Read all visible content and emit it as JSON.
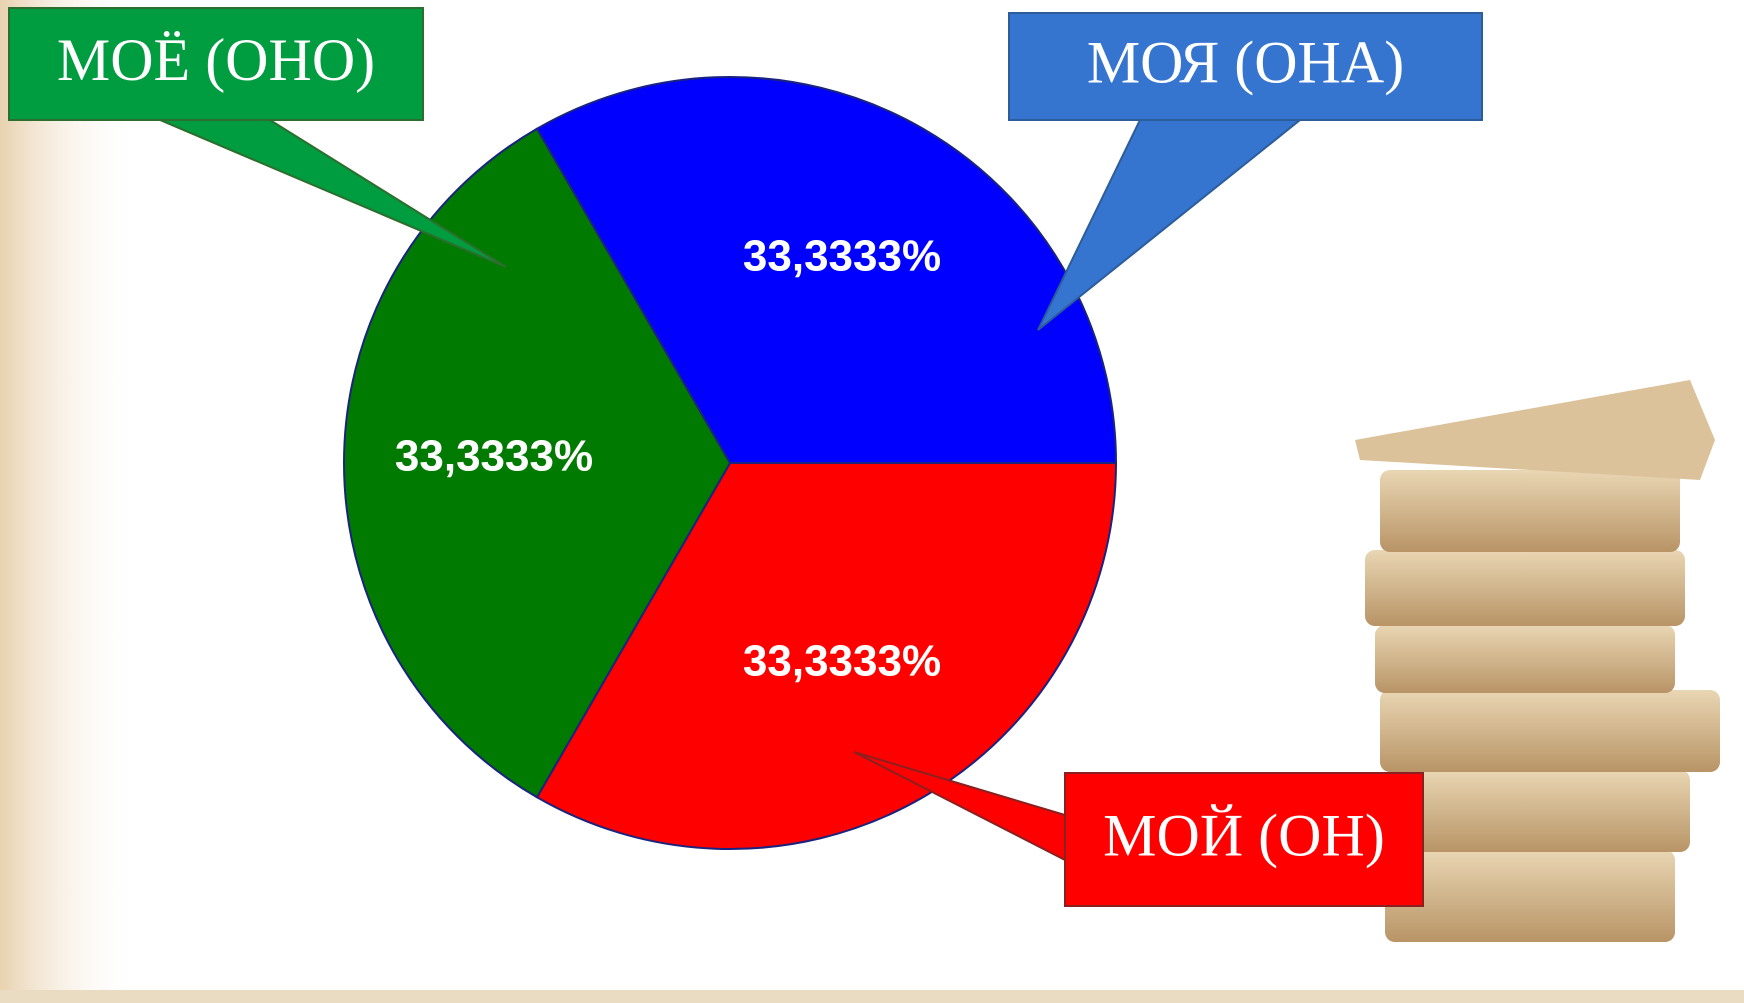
{
  "chart_data": {
    "type": "pie",
    "categories": [
      "МОЯ (ОНА)",
      "МОЙ (ОН)",
      "МОЁ (ОНО)"
    ],
    "values": [
      33.3333,
      33.3333,
      33.3333
    ],
    "value_labels": [
      "33,3333%",
      "33,3333%",
      "33,3333%"
    ],
    "colors": [
      "#0000ff",
      "#ff0000",
      "#007a00"
    ]
  }
}
